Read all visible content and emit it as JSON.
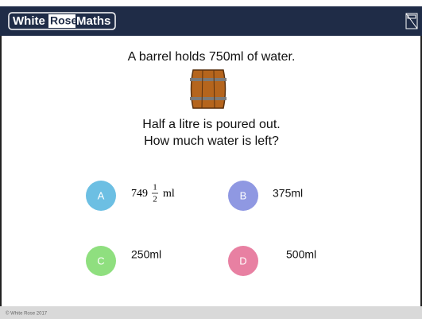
{
  "header": {
    "logo": [
      "White",
      "Rose",
      "Maths"
    ]
  },
  "question": {
    "lines": [
      "A barrel holds 750ml of water.",
      "Half a litre is poured out.",
      "How much water is left?"
    ]
  },
  "options": [
    {
      "letter": "A",
      "answer": {
        "whole": "749",
        "numerator": "1",
        "denominator": "2",
        "unit": "ml"
      }
    },
    {
      "letter": "B",
      "answer": "375ml"
    },
    {
      "letter": "C",
      "answer": "250ml"
    },
    {
      "letter": "D",
      "answer": "500ml"
    }
  ],
  "footer": {
    "text": "© White Rose 2017"
  }
}
